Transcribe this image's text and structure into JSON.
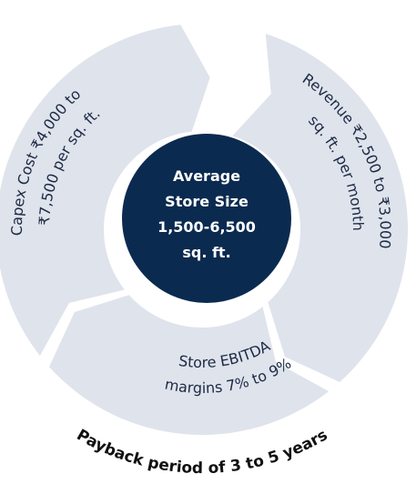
{
  "center": {
    "lines": [
      "Average",
      "Store Size",
      "1,500-6,500",
      "sq. ft."
    ]
  },
  "segments": [
    {
      "lines": [
        "Capex Cost ₹4,000 to",
        "₹7,500 per sq. ft."
      ]
    },
    {
      "lines": [
        "Revenue ₹2,500 to ₹3,000",
        "sq. ft. per month"
      ]
    },
    {
      "lines": [
        "Store EBITDA",
        "margins 7% to 9%"
      ]
    }
  ],
  "footer": "Payback period of 3 to 5 years"
}
